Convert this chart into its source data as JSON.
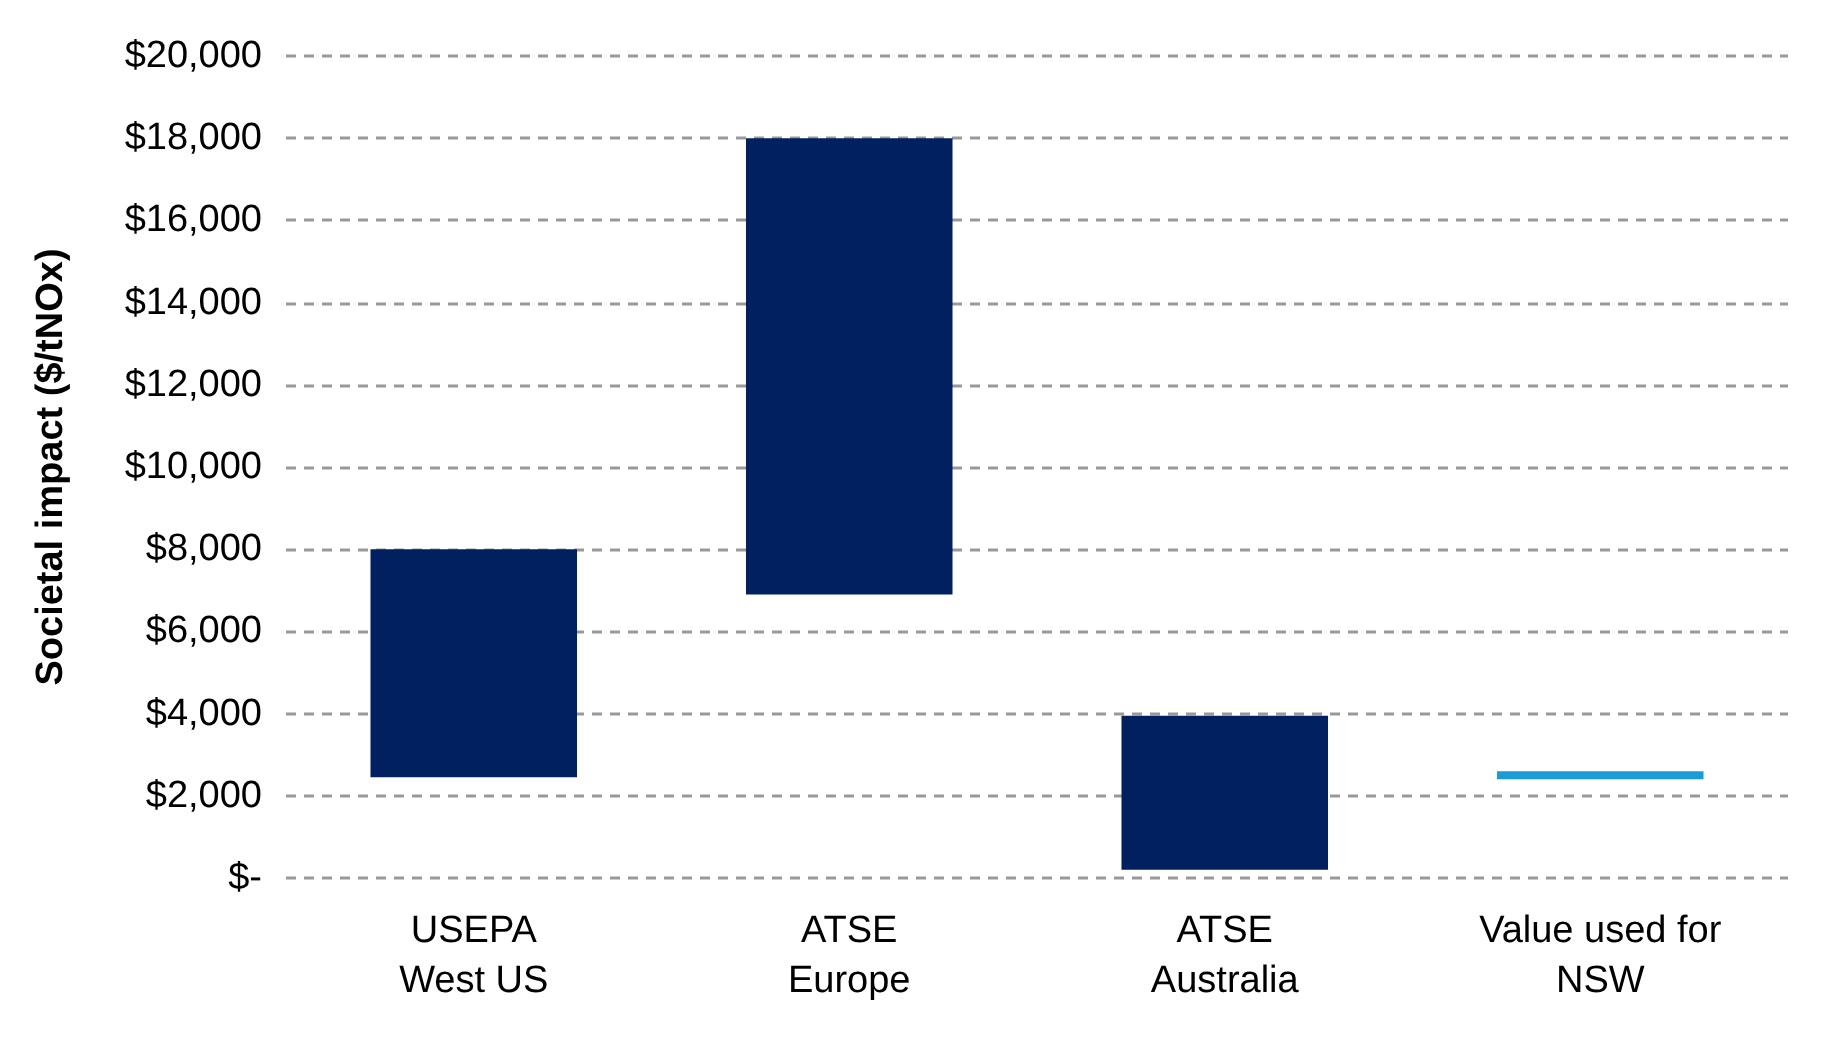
{
  "chart_data": {
    "type": "bar",
    "ylabel": "Societal impact ($/tNOx)",
    "categories": [
      "USEPA\nWest US",
      "ATSE\nEurope",
      "ATSE\nAustralia",
      "Value used for\nNSW"
    ],
    "base": [
      2450,
      6900,
      200,
      2400
    ],
    "values": [
      5550,
      11100,
      3750,
      200
    ],
    "colors": [
      "#002060",
      "#002060",
      "#002060",
      "#1b9bd7"
    ],
    "ylim": [
      0,
      20000
    ],
    "yticks": [
      {
        "value": 0,
        "label": "$-"
      },
      {
        "value": 2000,
        "label": "$2,000"
      },
      {
        "value": 4000,
        "label": "$4,000"
      },
      {
        "value": 6000,
        "label": "$6,000"
      },
      {
        "value": 8000,
        "label": "$8,000"
      },
      {
        "value": 10000,
        "label": "$10,000"
      },
      {
        "value": 12000,
        "label": "$12,000"
      },
      {
        "value": 14000,
        "label": "$14,000"
      },
      {
        "value": 16000,
        "label": "$16,000"
      },
      {
        "value": 18000,
        "label": "$18,000"
      },
      {
        "value": 20000,
        "label": "$20,000"
      }
    ],
    "grid": "y"
  }
}
